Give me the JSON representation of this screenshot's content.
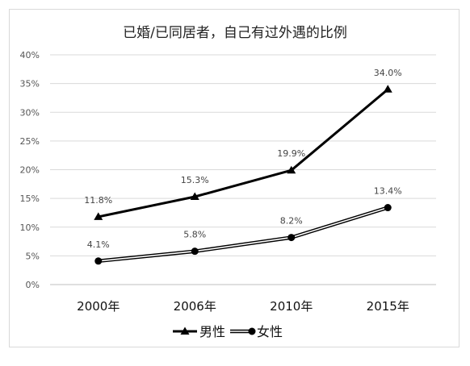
{
  "chart_data": {
    "type": "line",
    "title": "已婚/已同居者，自己有过外遇的比例",
    "categories": [
      "2000年",
      "2006年",
      "2010年",
      "2015年"
    ],
    "series": [
      {
        "name": "男性",
        "values": [
          11.8,
          15.3,
          19.9,
          34.0
        ],
        "labels": [
          "11.8%",
          "15.3%",
          "19.9%",
          "34.0%"
        ],
        "marker": "triangle",
        "style": "solid"
      },
      {
        "name": "女性",
        "values": [
          4.1,
          5.8,
          8.2,
          13.4
        ],
        "labels": [
          "4.1%",
          "5.8%",
          "8.2%",
          "13.4%"
        ],
        "marker": "circle",
        "style": "double"
      }
    ],
    "ylim": [
      0,
      40
    ],
    "yticks": [
      "0%",
      "5%",
      "10%",
      "15%",
      "20%",
      "25%",
      "30%",
      "35%",
      "40%"
    ],
    "ytick_values": [
      0,
      5,
      10,
      15,
      20,
      25,
      30,
      35,
      40
    ],
    "grid": true,
    "legend_position": "bottom",
    "colors": {
      "line": "#000000",
      "grid": "#d9d9d9",
      "border": "#d9d9d9"
    }
  }
}
